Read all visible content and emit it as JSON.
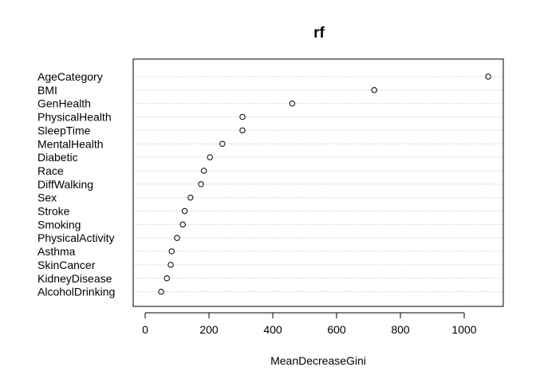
{
  "chart_data": {
    "type": "scatter",
    "subtype": "dotchart",
    "title": "rf",
    "xlabel": "MeanDecreaseGini",
    "ylabel": "",
    "xlim": [
      -40,
      1110
    ],
    "xticks": [
      0,
      200,
      400,
      600,
      800,
      1000
    ],
    "grid": "dotted-horizontal",
    "legend": "none",
    "categories": [
      "AgeCategory",
      "BMI",
      "GenHealth",
      "PhysicalHealth",
      "SleepTime",
      "MentalHealth",
      "Diabetic",
      "Race",
      "DiffWalking",
      "Sex",
      "Stroke",
      "Smoking",
      "PhysicalActivity",
      "Asthma",
      "SkinCancer",
      "KidneyDisease",
      "AlcoholDrinking"
    ],
    "values": [
      1075,
      718,
      461,
      305,
      305,
      242,
      203,
      184,
      175,
      142,
      124,
      118,
      100,
      83,
      80,
      68,
      50
    ]
  }
}
